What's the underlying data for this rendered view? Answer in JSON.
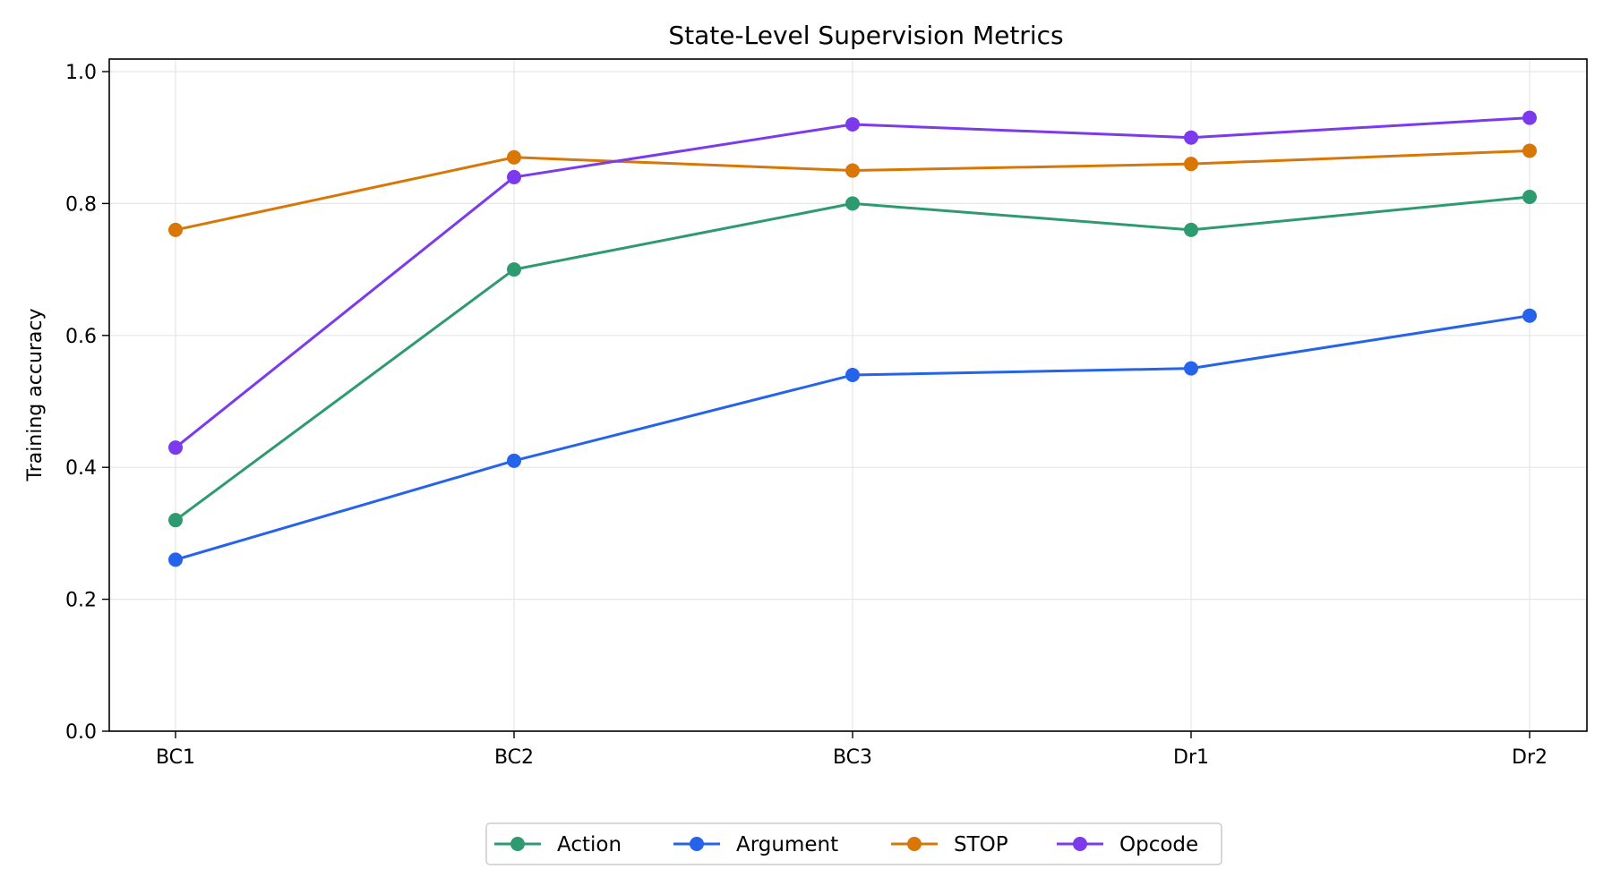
{
  "chart_data": {
    "type": "line",
    "title": "State-Level Supervision Metrics",
    "xlabel": "",
    "ylabel": "Training accuracy",
    "categories": [
      "BC1",
      "BC2",
      "BC3",
      "Dr1",
      "Dr2"
    ],
    "ylim": [
      0.0,
      1.0
    ],
    "yticks": [
      "0.0",
      "0.2",
      "0.4",
      "0.6",
      "0.8",
      "1.0"
    ],
    "grid": true,
    "legend_position": "bottom-center",
    "series": [
      {
        "name": "Action",
        "color": "#2e9a6f",
        "values": [
          0.32,
          0.7,
          0.8,
          0.76,
          0.81
        ]
      },
      {
        "name": "Argument",
        "color": "#2563eb",
        "values": [
          0.26,
          0.41,
          0.54,
          0.55,
          0.63
        ]
      },
      {
        "name": "STOP",
        "color": "#d97706",
        "values": [
          0.76,
          0.87,
          0.85,
          0.86,
          0.88
        ]
      },
      {
        "name": "Opcode",
        "color": "#7c3aed",
        "values": [
          0.43,
          0.84,
          0.92,
          0.9,
          0.93
        ]
      }
    ]
  }
}
